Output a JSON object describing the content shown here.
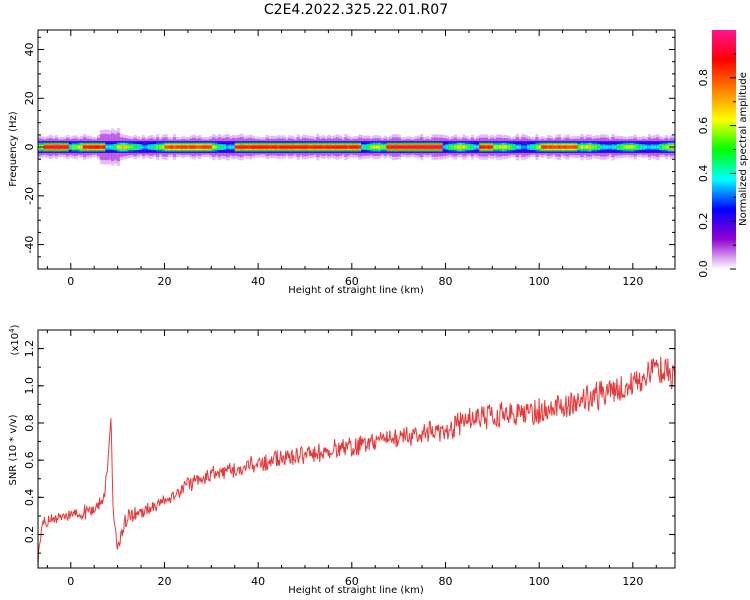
{
  "title": "C2E4.2022.325.22.01.R07",
  "chart_data": [
    {
      "type": "heatmap",
      "xlabel": "Height of straight line (km)",
      "ylabel": "Frequency (Hz)",
      "xlim": [
        -7,
        129
      ],
      "ylim": [
        -50,
        48
      ],
      "xticks": [
        0,
        20,
        40,
        60,
        80,
        100,
        120
      ],
      "yticks": [
        -40,
        -20,
        0,
        20,
        40
      ],
      "description_ref": "band",
      "band": {
        "center_freq_hz": 0,
        "core_halfwidth_hz": 1.5,
        "outer_halfwidth_hz": 4,
        "peak_segments": [
          {
            "x": [
              -6,
              -1
            ],
            "amplitude": 0.95
          },
          {
            "x": [
              2,
              7
            ],
            "amplitude": 0.9
          },
          {
            "x": [
              20,
              30
            ],
            "amplitude": 0.85
          },
          {
            "x": [
              35,
              62
            ],
            "amplitude": 0.9
          },
          {
            "x": [
              67,
              79
            ],
            "amplitude": 0.95
          },
          {
            "x": [
              87,
              90
            ],
            "amplitude": 0.9
          },
          {
            "x": [
              100,
              108
            ],
            "amplitude": 0.85
          }
        ]
      },
      "colorbar": {
        "label": "Normalized spectral amplitude",
        "range": [
          0,
          1
        ],
        "ticks": [
          "0.0",
          "0.2",
          "0.4",
          "0.6",
          "0.8"
        ],
        "colors": [
          "#ffffff",
          "#9400d3",
          "#0000ff",
          "#00ffff",
          "#00ff00",
          "#ffff00",
          "#ff7f00",
          "#ff0000",
          "#ff1493"
        ]
      }
    },
    {
      "type": "line",
      "xlabel": "Height of straight line (km)",
      "ylabel": "SNR (10 * v/v)",
      "scale_label": "(x10",
      "scale_exp": "4",
      "scale_close": ")",
      "xlim": [
        -7,
        129
      ],
      "ylim": [
        0.02,
        1.3
      ],
      "xticks": [
        0,
        20,
        40,
        60,
        80,
        100,
        120
      ],
      "yticks": [
        "0.2",
        "0.4",
        "0.6",
        "0.8",
        "1.0",
        "1.2"
      ],
      "line_color": "#e8393a",
      "trend": {
        "x": [
          -7,
          -6,
          -4,
          0,
          4,
          7,
          8,
          8.6,
          9,
          10,
          12,
          16,
          20,
          25,
          30,
          40,
          50,
          60,
          70,
          80,
          85,
          90,
          100,
          110,
          120,
          125,
          129
        ],
        "y": [
          0.05,
          0.25,
          0.28,
          0.3,
          0.33,
          0.38,
          0.6,
          0.84,
          0.35,
          0.12,
          0.3,
          0.33,
          0.38,
          0.47,
          0.52,
          0.58,
          0.63,
          0.67,
          0.72,
          0.76,
          0.82,
          0.83,
          0.86,
          0.93,
          1.0,
          1.1,
          1.05
        ]
      }
    }
  ]
}
